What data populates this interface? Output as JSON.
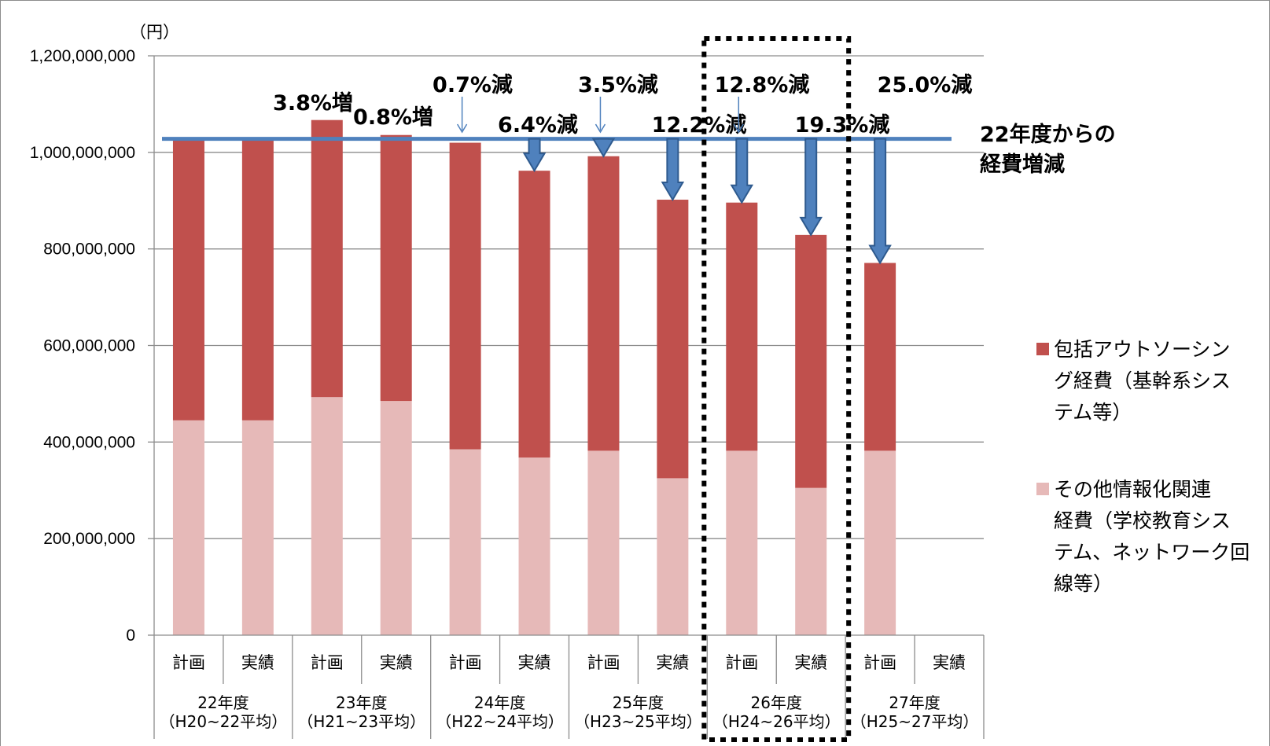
{
  "chart_data": {
    "type": "bar",
    "stacked": true,
    "unit_label": "（円）",
    "ylim": [
      0,
      1200000000
    ],
    "yticks": [
      0,
      200000000,
      400000000,
      600000000,
      800000000,
      1000000000,
      1200000000
    ],
    "ytick_labels": [
      "0",
      "200,000,000",
      "400,000,000",
      "600,000,000",
      "800,000,000",
      "1,000,000,000",
      "1,200,000,000"
    ],
    "grid": true,
    "categories": [
      "計画",
      "実績",
      "計画",
      "実績",
      "計画",
      "実績",
      "計画",
      "実績",
      "計画",
      "実績",
      "計画",
      "実績"
    ],
    "groups": [
      {
        "line1": "22年度",
        "line2": "（H20~22平均）"
      },
      {
        "line1": "23年度",
        "line2": "（H21~23平均）"
      },
      {
        "line1": "24年度",
        "line2": "（H22~24平均）"
      },
      {
        "line1": "25年度",
        "line2": "（H23~25平均）"
      },
      {
        "line1": "26年度",
        "line2": "（H24~26平均）"
      },
      {
        "line1": "27年度",
        "line2": "（H25~27平均）"
      }
    ],
    "series": [
      {
        "name": "その他情報化関連経費（学校教育システム、ネットワーク回線等）",
        "color": "#e6b9b8",
        "values": [
          445000000,
          445000000,
          493000000,
          485000000,
          385000000,
          368000000,
          382000000,
          325000000,
          382000000,
          305000000,
          382000000,
          null
        ]
      },
      {
        "name": "包括アウトソーシング経費（基幹系システム等）",
        "color": "#c0504d",
        "values": [
          583000000,
          583000000,
          574000000,
          551000000,
          635000000,
          594000000,
          610000000,
          577000000,
          514000000,
          524000000,
          389000000,
          null
        ]
      }
    ],
    "baseline": {
      "value": 1028000000,
      "label": "22年度からの経費増減",
      "label_lines": [
        "22年度からの",
        "経費増減"
      ],
      "color": "#4f81bd"
    },
    "annotations": [
      {
        "text": "3.8%増",
        "index": 2
      },
      {
        "text": "0.8%増",
        "index": 3
      },
      {
        "text": "0.7%減",
        "index": 4
      },
      {
        "text": "6.4%減",
        "index": 5
      },
      {
        "text": "3.5%減",
        "index": 6
      },
      {
        "text": "12.2%減",
        "index": 7
      },
      {
        "text": "12.8%減",
        "index": 8
      },
      {
        "text": "19.3%減",
        "index": 9
      },
      {
        "text": "25.0%減",
        "index": 10
      }
    ],
    "legend": {
      "position": "right",
      "entries": [
        {
          "color": "#c0504d",
          "lines": [
            "包括アウトソーシン",
            "グ経費（基幹系シス",
            "テム等）"
          ]
        },
        {
          "color": "#e6b9b8",
          "lines": [
            "その他情報化関連",
            "経費（学校教育シス",
            "テム、ネットワーク回",
            "線等）"
          ]
        }
      ]
    }
  }
}
